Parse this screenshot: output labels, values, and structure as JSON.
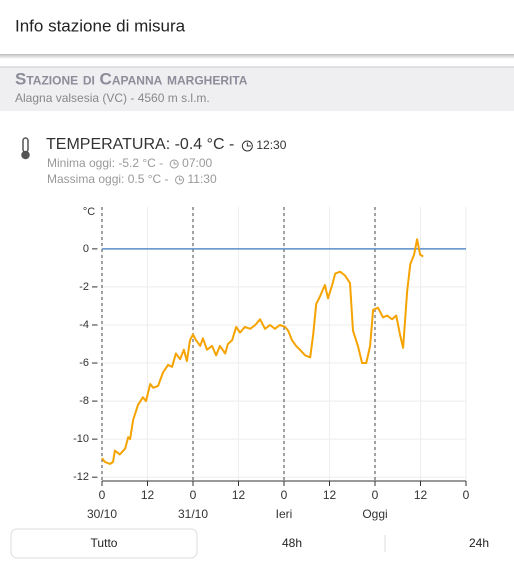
{
  "header": {
    "title": "Info stazione di misura"
  },
  "station": {
    "name": "Stazione di Capanna margherita",
    "location": "Alagna valsesia (VC) - 4560 m s.l.m."
  },
  "temperature": {
    "current": "TEMPERATURA: -0.4 °C -",
    "current_time": "12:30",
    "min": "Minima oggi: -5.2 °C -",
    "min_time": "07:00",
    "max": "Massima oggi: 0.5 °C -",
    "max_time": "11:30"
  },
  "chart_data": {
    "type": "line",
    "y_label": "°C",
    "color": "#f5a300",
    "x": [
      0,
      0.8,
      2.1,
      2.9,
      3.4,
      4.7,
      6.1,
      6.9,
      7.4,
      8.2,
      9.5,
      10.8,
      11.6,
      12.7,
      13.5,
      14.8,
      16.1,
      17.4,
      18.5,
      19.5,
      20.6,
      21.6,
      22.4,
      23.2,
      24.0,
      24.8,
      25.9,
      26.6,
      27.7,
      29.0,
      30.1,
      31.1,
      32.5,
      33.2,
      34.3,
      35.4,
      36.4,
      37.7,
      39.1,
      40.4,
      41.7,
      43.0,
      44.3,
      45.6,
      46.9,
      48.3,
      49.1,
      50.1,
      51.2,
      52.2,
      53.6,
      54.9,
      55.7,
      56.5,
      57.5,
      58.8,
      59.6,
      60.7,
      61.5,
      62.8,
      64.1,
      65.4,
      66.2,
      67.5,
      68.6,
      69.7,
      70.7,
      71.5,
      72.8,
      74.1,
      75.2,
      76.5,
      77.6,
      78.6,
      79.4,
      80.5,
      81.3,
      82.3,
      83.1,
      83.9,
      84.7
    ],
    "values": [
      -11.0,
      -11.2,
      -11.3,
      -11.2,
      -10.6,
      -10.8,
      -10.5,
      -9.9,
      -10.0,
      -9.0,
      -8.2,
      -7.8,
      -8.0,
      -7.1,
      -7.3,
      -7.2,
      -6.5,
      -6.1,
      -6.2,
      -5.5,
      -5.8,
      -5.3,
      -5.9,
      -4.8,
      -4.5,
      -4.8,
      -5.1,
      -4.7,
      -5.3,
      -5.1,
      -5.6,
      -5.1,
      -5.5,
      -5.0,
      -4.8,
      -4.1,
      -4.4,
      -4.1,
      -4.2,
      -4.0,
      -3.7,
      -4.2,
      -4.0,
      -4.2,
      -4.0,
      -4.1,
      -4.3,
      -4.8,
      -5.1,
      -5.3,
      -5.6,
      -5.7,
      -4.5,
      -2.9,
      -2.5,
      -1.9,
      -2.6,
      -1.9,
      -1.3,
      -1.2,
      -1.4,
      -1.8,
      -4.3,
      -5.1,
      -6.0,
      -6.0,
      -5.1,
      -3.2,
      -3.1,
      -3.6,
      -3.5,
      -3.7,
      -3.5,
      -4.5,
      -5.2,
      -2.2,
      -0.8,
      -0.3,
      0.5,
      -0.3,
      -0.4
    ],
    "xlim": [
      0,
      96
    ],
    "xticks": [
      0,
      12,
      {
        "value": 24,
        "label": "0"
      },
      {
        "value": 36,
        "label": "12"
      },
      {
        "value": 48,
        "label": "0"
      },
      {
        "value": 60,
        "label": "12"
      },
      {
        "value": 72,
        "label": "0"
      },
      {
        "value": 84,
        "label": "12"
      },
      {
        "value": 96,
        "label": "0"
      }
    ],
    "xtick_days": [
      {
        "value": 0,
        "label": "30/10"
      },
      {
        "value": 24,
        "label": "31/10"
      },
      {
        "value": 48,
        "label": "Ieri"
      },
      {
        "value": 72,
        "label": "Oggi"
      }
    ],
    "ylim": [
      -12.2,
      2.2
    ],
    "yticks": [
      0,
      -2,
      -4,
      -6,
      -8,
      -10,
      -12
    ],
    "grid": true,
    "hline": {
      "value": 0,
      "color": "#5b8fc7"
    }
  },
  "tabs": [
    "Tutto",
    "48h",
    "24h"
  ]
}
